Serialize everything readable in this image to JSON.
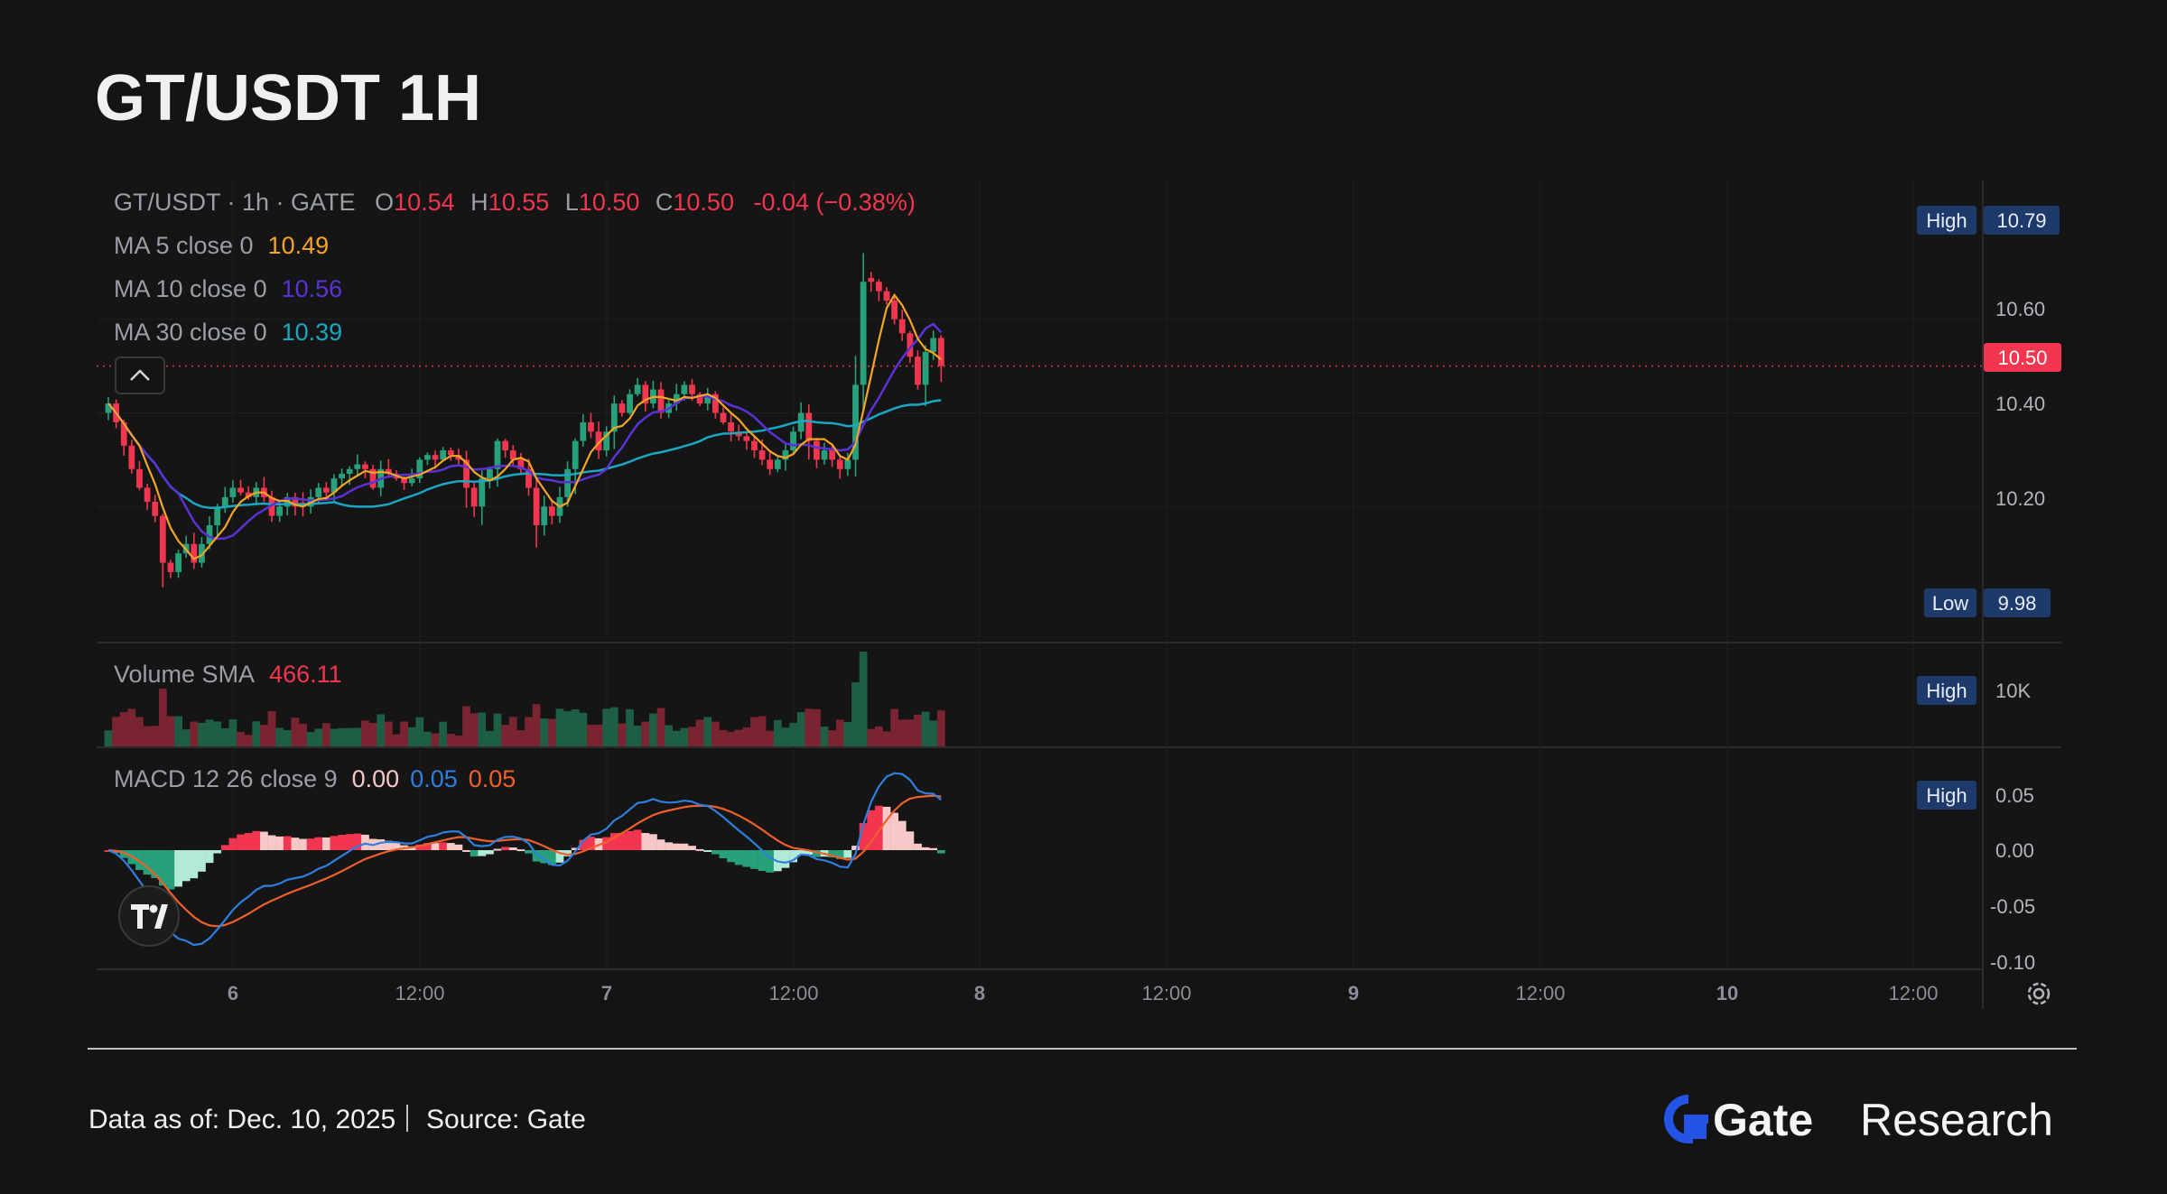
{
  "page": {
    "title": "GT/USDT 1H"
  },
  "legend": {
    "symbol": "GT/USDT · 1h · GATE",
    "ohlc": {
      "o_label": "O",
      "o": "10.54",
      "h_label": "H",
      "h": "10.55",
      "l_label": "L",
      "l": "10.50",
      "c_label": "C",
      "c": "10.50",
      "change": "-0.04 (−0.38%)"
    },
    "ma5": {
      "label": "MA 5 close 0",
      "value": "10.49"
    },
    "ma10": {
      "label": "MA 10 close 0",
      "value": "10.56"
    },
    "ma30": {
      "label": "MA 30 close 0",
      "value": "10.39"
    },
    "volume": {
      "label": "Volume SMA",
      "value": "466.11"
    },
    "macd": {
      "label": "MACD 12 26 close 9",
      "hist": "0.00",
      "macd": "0.05",
      "signal": "0.05"
    }
  },
  "badges": {
    "high_label": "High",
    "high_value": "10.79",
    "low_label": "Low",
    "low_value": "9.98",
    "current": "10.50",
    "vol_high_label": "High",
    "vol_high_value": "10K",
    "macd_high_label": "High",
    "macd_high_value": "0.05"
  },
  "footer": {
    "data_as_of": "Data as of: Dec. 10, 2025",
    "source": "Source:  Gate",
    "brand": "Gate",
    "brand_suffix": "Research"
  },
  "colors": {
    "up": "#26a17b",
    "down": "#f23650",
    "ma5": "#f5a524",
    "ma10": "#5b32d6",
    "ma30": "#1aa6c4",
    "macd_line": "#2f7fe0",
    "signal_line": "#f0602a"
  },
  "chart_data": [
    {
      "type": "candlestick",
      "y_ticks": [
        "10.20",
        "10.40",
        "10.60"
      ],
      "ylim": [
        10.0,
        10.8
      ],
      "x_tick_labels": [
        "6",
        "12:00",
        "7",
        "12:00",
        "8",
        "12:00",
        "9",
        "12:00",
        "10",
        "12:00"
      ],
      "interval": "1h",
      "close_path": [
        10.42,
        10.38,
        10.33,
        10.28,
        10.24,
        10.21,
        10.18,
        10.08,
        10.06,
        10.1,
        10.12,
        10.08,
        10.12,
        10.16,
        10.2,
        10.22,
        10.24,
        10.23,
        10.22,
        10.24,
        10.22,
        10.18,
        10.2,
        10.22,
        10.2,
        10.2,
        10.22,
        10.24,
        10.23,
        10.26,
        10.27,
        10.28,
        10.29,
        10.28,
        10.24,
        10.28,
        10.27,
        10.26,
        10.25,
        10.26,
        10.3,
        10.31,
        10.3,
        10.32,
        10.31,
        10.3,
        10.24,
        10.2,
        10.26,
        10.28,
        10.34,
        10.32,
        10.3,
        10.28,
        10.24,
        10.16,
        10.2,
        10.18,
        10.22,
        10.28,
        10.34,
        10.38,
        10.36,
        10.32,
        10.36,
        10.42,
        10.4,
        10.44,
        10.46,
        10.42,
        10.45,
        10.4,
        10.42,
        10.44,
        10.46,
        10.44,
        10.42,
        10.44,
        10.4,
        10.38,
        10.36,
        10.35,
        10.34,
        10.32,
        10.3,
        10.28,
        10.3,
        10.32,
        10.36,
        10.4,
        10.34,
        10.3,
        10.32,
        10.3,
        10.28,
        10.3,
        10.46,
        10.68,
        10.68,
        10.66,
        10.64,
        10.6,
        10.57,
        10.52,
        10.46,
        10.53,
        10.56,
        10.5
      ]
    },
    {
      "type": "bar",
      "name": "Volume",
      "label": "Volume SMA",
      "value": "466.11",
      "y_ticks": [
        "10K"
      ]
    },
    {
      "type": "macd",
      "label": "MACD 12 26 close 9",
      "y_ticks": [
        "0.05",
        "0.00",
        "-0.05",
        "-0.10"
      ],
      "ylim": [
        -0.1,
        0.075
      ]
    }
  ]
}
